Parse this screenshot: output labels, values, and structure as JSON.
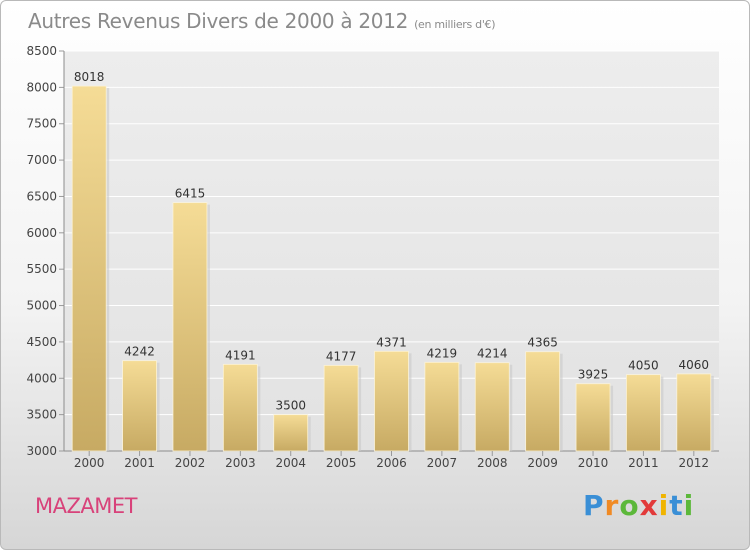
{
  "chart_data": {
    "type": "bar",
    "title": "Autres Revenus Divers de 2000 à 2012",
    "subtitle": "(en milliers d'€)",
    "categories": [
      "2000",
      "2001",
      "2002",
      "2003",
      "2004",
      "2005",
      "2006",
      "2007",
      "2008",
      "2009",
      "2010",
      "2011",
      "2012"
    ],
    "values": [
      8018,
      4242,
      6415,
      4191,
      3500,
      4177,
      4371,
      4219,
      4214,
      4365,
      3925,
      4050,
      4060
    ],
    "ylim": [
      3000,
      8500
    ],
    "yticks": [
      3000,
      3500,
      4000,
      4500,
      5000,
      5500,
      6000,
      6500,
      7000,
      7500,
      8000,
      8500
    ],
    "grid": true,
    "bar_color_top": "#f5dc96",
    "bar_color_bottom": "#c7aa63"
  },
  "footer": {
    "commune": "MAZAMET",
    "logo_letters": [
      "P",
      "r",
      "o",
      "x",
      "i",
      "t",
      "i"
    ],
    "logo_colors": [
      "#3a8fd6",
      "#f08a24",
      "#5cb83a",
      "#e23a3a",
      "#f0b400",
      "#3a8fd6",
      "#5cb83a"
    ]
  }
}
